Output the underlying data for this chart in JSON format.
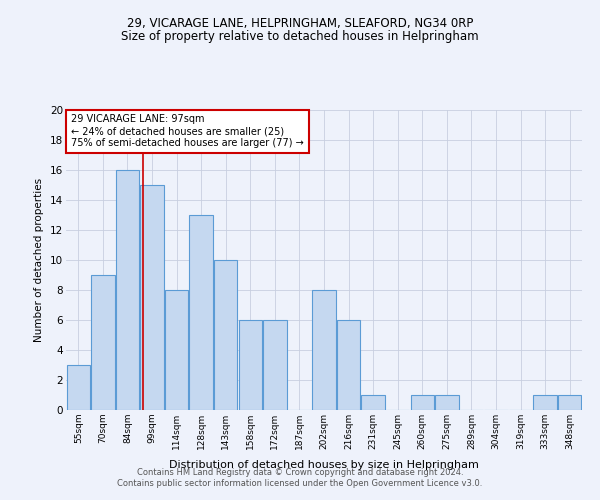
{
  "title1": "29, VICARAGE LANE, HELPRINGHAM, SLEAFORD, NG34 0RP",
  "title2": "Size of property relative to detached houses in Helpringham",
  "xlabel": "Distribution of detached houses by size in Helpringham",
  "ylabel": "Number of detached properties",
  "categories": [
    "55sqm",
    "70sqm",
    "84sqm",
    "99sqm",
    "114sqm",
    "128sqm",
    "143sqm",
    "158sqm",
    "172sqm",
    "187sqm",
    "202sqm",
    "216sqm",
    "231sqm",
    "245sqm",
    "260sqm",
    "275sqm",
    "289sqm",
    "304sqm",
    "319sqm",
    "333sqm",
    "348sqm"
  ],
  "values": [
    3,
    9,
    16,
    15,
    8,
    13,
    10,
    6,
    6,
    0,
    8,
    6,
    1,
    0,
    1,
    1,
    0,
    0,
    0,
    1,
    1
  ],
  "bar_color": "#c5d8f0",
  "bar_edge_color": "#5b9bd5",
  "property_line_x": 2.65,
  "annotation_text1": "29 VICARAGE LANE: 97sqm",
  "annotation_text2": "← 24% of detached houses are smaller (25)",
  "annotation_text3": "75% of semi-detached houses are larger (77) →",
  "annotation_box_color": "#ffffff",
  "annotation_box_edge": "#cc0000",
  "redline_color": "#cc0000",
  "grid_color": "#c8cfe0",
  "background_color": "#eef2fb",
  "ylim": [
    0,
    20
  ],
  "yticks": [
    0,
    2,
    4,
    6,
    8,
    10,
    12,
    14,
    16,
    18,
    20
  ],
  "footer1": "Contains HM Land Registry data © Crown copyright and database right 2024.",
  "footer2": "Contains public sector information licensed under the Open Government Licence v3.0."
}
